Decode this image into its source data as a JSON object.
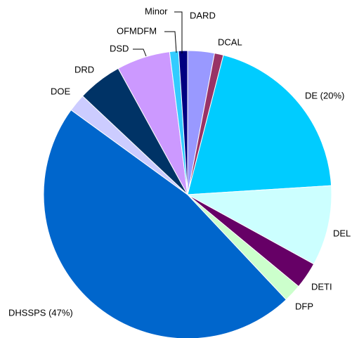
{
  "chart_data": {
    "type": "pie",
    "categories": [
      "DARD",
      "DCAL",
      "DE (20%)",
      "DEL",
      "DETI",
      "DFP",
      "DHSSPS (47%)",
      "DOE",
      "DRD",
      "DSD",
      "OFMDFM",
      "Minor"
    ],
    "values": [
      3,
      1,
      20,
      9,
      3,
      2,
      47,
      2,
      5,
      6,
      1,
      1
    ],
    "colors": [
      "#9999ff",
      "#993366",
      "#00ccff",
      "#ccffff",
      "#660066",
      "#ccffcc",
      "#0066cc",
      "#ccccff",
      "#003366",
      "#cc99ff",
      "#33ccff",
      "#000080"
    ]
  }
}
